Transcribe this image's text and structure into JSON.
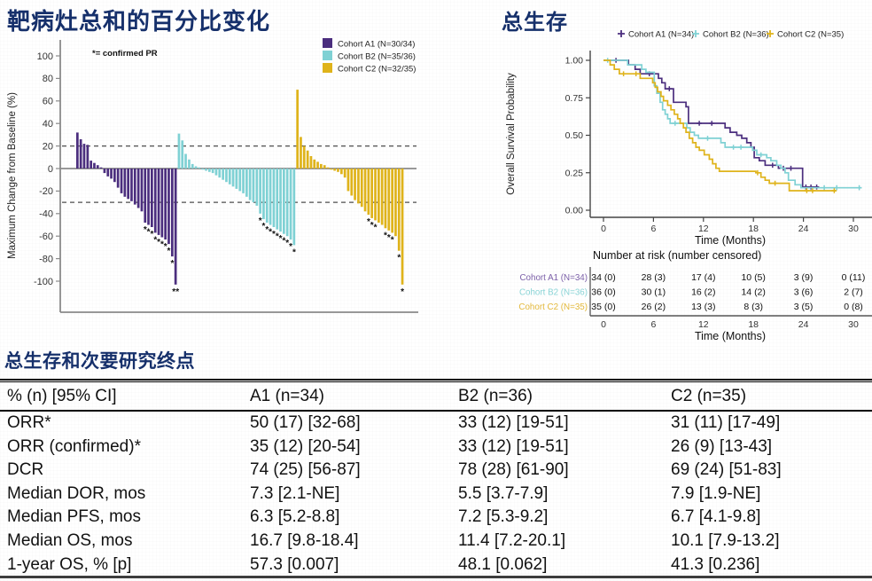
{
  "accent_title_color": "#16306B",
  "chart_data": [
    {
      "id": "waterfall",
      "type": "bar",
      "title": "靶病灶总和的百分比变化",
      "annotation": "*= confirmed PR",
      "ylabel": "Maximum Change from Baseline (%)",
      "ylim": [
        -110,
        110
      ],
      "yticks": [
        100,
        80,
        60,
        40,
        20,
        0,
        -20,
        -40,
        -60,
        -80,
        -100
      ],
      "reference_lines": [
        20,
        -30
      ],
      "grid": false,
      "legend_position": "top-right",
      "series": [
        {
          "name": "Cohort A1 (N=30/34)",
          "color": "#4B2E7E",
          "values": [
            32,
            26,
            22,
            21,
            7,
            5,
            3,
            1,
            -4,
            -7,
            -9,
            -12,
            -17,
            -22,
            -25,
            -27,
            -29,
            -32,
            -35,
            -38,
            -48,
            -50,
            -52,
            -57,
            -59,
            -61,
            -63,
            -67,
            -78,
            -103
          ],
          "star_indices": [
            20,
            21,
            22,
            23,
            24,
            25,
            26,
            27,
            28,
            29
          ],
          "double_star_indices": [
            29
          ]
        },
        {
          "name": "Cohort B2 (N=35/36)",
          "color": "#7FD1D4",
          "values": [
            31,
            25,
            13,
            8,
            4,
            2,
            1,
            -1,
            -2,
            -3,
            -4,
            -6,
            -8,
            -10,
            -12,
            -14,
            -16,
            -18,
            -20,
            -22,
            -25,
            -28,
            -30,
            -33,
            -40,
            -45,
            -48,
            -50,
            -52,
            -54,
            -56,
            -58,
            -60,
            -63,
            -68
          ],
          "star_indices": [
            24,
            25,
            26,
            27,
            28,
            29,
            30,
            31,
            32,
            33,
            34
          ],
          "double_star_indices": []
        },
        {
          "name": "Cohort C2 (N=32/35)",
          "color": "#DFB31A",
          "values": [
            70,
            28,
            20,
            16,
            11,
            8,
            6,
            4,
            3,
            1,
            -1,
            -2,
            -3,
            -5,
            -8,
            -20,
            -24,
            -28,
            -31,
            -34,
            -38,
            -41,
            -44,
            -46,
            -48,
            -50,
            -53,
            -55,
            -57,
            -60,
            -73,
            -103
          ],
          "star_indices": [
            21,
            22,
            23,
            26,
            27,
            28,
            30,
            31
          ],
          "double_star_indices": []
        }
      ]
    },
    {
      "id": "overall-survival",
      "type": "line",
      "title": "总生存",
      "ylabel": "Overall Survival Probability",
      "xlabel": "Time (Months)",
      "yticks": [
        "0.00",
        "0.25",
        "0.50",
        "0.75",
        "1.00"
      ],
      "xticks": [
        0,
        6,
        12,
        18,
        24,
        30
      ],
      "xlim": [
        0,
        31.5
      ],
      "ylim": [
        0,
        1
      ],
      "grid": false,
      "legend_position": "top",
      "series": [
        {
          "name": "Cohort A1 (N=34)",
          "color": "#4B2E7E",
          "steps": [
            [
              0,
              1
            ],
            [
              3,
              1
            ],
            [
              3,
              0.97
            ],
            [
              3.8,
              0.97
            ],
            [
              3.8,
              0.94
            ],
            [
              4.4,
              0.94
            ],
            [
              4.4,
              0.91
            ],
            [
              6.6,
              0.91
            ],
            [
              6.6,
              0.88
            ],
            [
              7.0,
              0.88
            ],
            [
              7.0,
              0.85
            ],
            [
              7.4,
              0.85
            ],
            [
              7.4,
              0.81
            ],
            [
              8.4,
              0.81
            ],
            [
              8.4,
              0.72
            ],
            [
              9.9,
              0.72
            ],
            [
              9.9,
              0.69
            ],
            [
              10.2,
              0.69
            ],
            [
              10.2,
              0.58
            ],
            [
              14.6,
              0.58
            ],
            [
              14.6,
              0.55
            ],
            [
              15.2,
              0.55
            ],
            [
              15.2,
              0.52
            ],
            [
              16.0,
              0.52
            ],
            [
              16.0,
              0.5
            ],
            [
              16.6,
              0.5
            ],
            [
              16.6,
              0.48
            ],
            [
              17.2,
              0.48
            ],
            [
              17.2,
              0.45
            ],
            [
              17.7,
              0.45
            ],
            [
              17.7,
              0.42
            ],
            [
              18.1,
              0.42
            ],
            [
              18.1,
              0.35
            ],
            [
              18.7,
              0.35
            ],
            [
              18.7,
              0.33
            ],
            [
              19.4,
              0.33
            ],
            [
              19.4,
              0.3
            ],
            [
              21.0,
              0.3
            ],
            [
              21.0,
              0.28
            ],
            [
              23.9,
              0.28
            ],
            [
              23.9,
              0.155
            ],
            [
              25.8,
              0.155
            ]
          ],
          "censors": [
            [
              1.5,
              1
            ],
            [
              5.5,
              0.91
            ],
            [
              7.9,
              0.81
            ],
            [
              11.5,
              0.58
            ],
            [
              13.0,
              0.58
            ],
            [
              20.3,
              0.3
            ],
            [
              21.6,
              0.28
            ],
            [
              22.5,
              0.28
            ],
            [
              24.3,
              0.155
            ],
            [
              24.9,
              0.155
            ],
            [
              25.6,
              0.155
            ]
          ]
        },
        {
          "name": "Cohort B2 (N=36)",
          "color": "#7FD1D4",
          "steps": [
            [
              0,
              1
            ],
            [
              2.9,
              1
            ],
            [
              2.9,
              0.97
            ],
            [
              4.6,
              0.97
            ],
            [
              4.6,
              0.94
            ],
            [
              5.1,
              0.94
            ],
            [
              5.1,
              0.92
            ],
            [
              6.1,
              0.92
            ],
            [
              6.1,
              0.83
            ],
            [
              6.4,
              0.83
            ],
            [
              6.4,
              0.78
            ],
            [
              6.8,
              0.78
            ],
            [
              6.8,
              0.72
            ],
            [
              7.1,
              0.72
            ],
            [
              7.1,
              0.67
            ],
            [
              7.4,
              0.67
            ],
            [
              7.4,
              0.64
            ],
            [
              7.7,
              0.64
            ],
            [
              7.7,
              0.61
            ],
            [
              8.0,
              0.61
            ],
            [
              8.0,
              0.58
            ],
            [
              10.0,
              0.58
            ],
            [
              10.0,
              0.55
            ],
            [
              10.4,
              0.55
            ],
            [
              10.4,
              0.52
            ],
            [
              10.9,
              0.52
            ],
            [
              10.9,
              0.5
            ],
            [
              11.4,
              0.5
            ],
            [
              11.4,
              0.48
            ],
            [
              14.1,
              0.48
            ],
            [
              14.1,
              0.45
            ],
            [
              14.6,
              0.45
            ],
            [
              14.6,
              0.42
            ],
            [
              17.9,
              0.42
            ],
            [
              17.9,
              0.4
            ],
            [
              18.4,
              0.4
            ],
            [
              18.4,
              0.37
            ],
            [
              19.6,
              0.37
            ],
            [
              19.6,
              0.35
            ],
            [
              20.1,
              0.35
            ],
            [
              20.1,
              0.33
            ],
            [
              20.8,
              0.33
            ],
            [
              20.8,
              0.3
            ],
            [
              21.3,
              0.3
            ],
            [
              21.3,
              0.28
            ],
            [
              21.8,
              0.28
            ],
            [
              21.8,
              0.25
            ],
            [
              22.2,
              0.25
            ],
            [
              22.2,
              0.2
            ],
            [
              23.0,
              0.2
            ],
            [
              23.0,
              0.17
            ],
            [
              23.7,
              0.17
            ],
            [
              23.7,
              0.15
            ],
            [
              31.0,
              0.15
            ]
          ],
          "censors": [
            [
              0.5,
              1
            ],
            [
              8.6,
              0.58
            ],
            [
              12.5,
              0.48
            ],
            [
              15.6,
              0.42
            ],
            [
              16.5,
              0.42
            ],
            [
              18.9,
              0.37
            ],
            [
              26.5,
              0.15
            ],
            [
              28.0,
              0.15
            ],
            [
              30.7,
              0.15
            ]
          ]
        },
        {
          "name": "Cohort C2 (N=35)",
          "color": "#DFB31A",
          "steps": [
            [
              0,
              1
            ],
            [
              0.8,
              1
            ],
            [
              0.8,
              0.97
            ],
            [
              1.3,
              0.97
            ],
            [
              1.3,
              0.94
            ],
            [
              1.9,
              0.94
            ],
            [
              1.9,
              0.91
            ],
            [
              4.4,
              0.91
            ],
            [
              4.4,
              0.88
            ],
            [
              5.9,
              0.88
            ],
            [
              5.9,
              0.85
            ],
            [
              6.2,
              0.85
            ],
            [
              6.2,
              0.82
            ],
            [
              6.5,
              0.82
            ],
            [
              6.5,
              0.79
            ],
            [
              6.9,
              0.79
            ],
            [
              6.9,
              0.76
            ],
            [
              7.2,
              0.76
            ],
            [
              7.2,
              0.73
            ],
            [
              7.7,
              0.73
            ],
            [
              7.7,
              0.7
            ],
            [
              8.1,
              0.7
            ],
            [
              8.1,
              0.67
            ],
            [
              8.5,
              0.67
            ],
            [
              8.5,
              0.64
            ],
            [
              8.9,
              0.64
            ],
            [
              8.9,
              0.61
            ],
            [
              9.2,
              0.61
            ],
            [
              9.2,
              0.58
            ],
            [
              9.6,
              0.58
            ],
            [
              9.6,
              0.55
            ],
            [
              9.9,
              0.55
            ],
            [
              9.9,
              0.52
            ],
            [
              10.3,
              0.52
            ],
            [
              10.3,
              0.48
            ],
            [
              10.7,
              0.48
            ],
            [
              10.7,
              0.45
            ],
            [
              11.1,
              0.45
            ],
            [
              11.1,
              0.42
            ],
            [
              11.5,
              0.42
            ],
            [
              11.5,
              0.4
            ],
            [
              12.1,
              0.4
            ],
            [
              12.1,
              0.37
            ],
            [
              12.7,
              0.37
            ],
            [
              12.7,
              0.34
            ],
            [
              13.1,
              0.34
            ],
            [
              13.1,
              0.31
            ],
            [
              13.5,
              0.31
            ],
            [
              13.5,
              0.28
            ],
            [
              13.9,
              0.28
            ],
            [
              13.9,
              0.26
            ],
            [
              18.3,
              0.26
            ],
            [
              18.3,
              0.25
            ],
            [
              18.9,
              0.25
            ],
            [
              18.9,
              0.22
            ],
            [
              19.4,
              0.22
            ],
            [
              19.4,
              0.2
            ],
            [
              19.9,
              0.2
            ],
            [
              19.9,
              0.18
            ],
            [
              22.3,
              0.18
            ],
            [
              22.3,
              0.13
            ],
            [
              27.9,
              0.13
            ]
          ],
          "censors": [
            [
              2.4,
              0.91
            ],
            [
              3.9,
              0.91
            ],
            [
              18.5,
              0.25
            ],
            [
              20.6,
              0.18
            ],
            [
              24.4,
              0.13
            ],
            [
              25.1,
              0.13
            ],
            [
              27.7,
              0.13
            ]
          ]
        }
      ],
      "risk_table": {
        "header": "Number at risk (number censored)",
        "xlabel": "Time (Months)",
        "xticks": [
          0,
          6,
          12,
          18,
          24,
          30
        ],
        "rows": [
          {
            "label": "Cohort A1 (N=34)",
            "color": "#7B5FA8",
            "values": [
              "34 (0)",
              "28 (3)",
              "17 (4)",
              "10 (5)",
              "3 (9)",
              "0 (11)"
            ]
          },
          {
            "label": "Cohort B2 (N=36)",
            "color": "#8AD4D6",
            "values": [
              "36 (0)",
              "30 (1)",
              "16 (2)",
              "14 (2)",
              "3 (6)",
              "2 (7)"
            ]
          },
          {
            "label": "Cohort C2 (N=35)",
            "color": "#E3B83A",
            "values": [
              "35 (0)",
              "26 (2)",
              "13 (3)",
              "8 (3)",
              "3 (5)",
              "0 (8)"
            ]
          }
        ]
      }
    },
    {
      "id": "endpoints",
      "type": "table",
      "title": "总生存和次要研究终点",
      "headers": [
        "% (n) [95% CI]",
        "A1 (n=34)",
        "B2 (n=36)",
        "C2 (n=35)"
      ],
      "rows": [
        [
          "ORR*",
          "50 (17) [32-68]",
          "33 (12) [19-51]",
          "31 (11) [17-49]"
        ],
        [
          "ORR (confirmed)*",
          "35 (12) [20-54]",
          "33 (12) [19-51]",
          "26 (9) [13-43]"
        ],
        [
          "DCR",
          "74 (25) [56-87]",
          "78 (28) [61-90]",
          "69 (24) [51-83]"
        ],
        [
          "Median DOR, mos",
          "7.3 [2.1-NE]",
          "5.5 [3.7-7.9]",
          "7.9 [1.9-NE]"
        ],
        [
          "Median PFS, mos",
          "6.3 [5.2-8.8]",
          "7.2 [5.3-9.2]",
          "6.7 [4.1-9.8]"
        ],
        [
          "Median OS, mos",
          "16.7 [9.8-18.4]",
          "11.4 [7.2-20.1]",
          "10.1 [7.9-13.2]"
        ],
        [
          "1-year OS, % [p]",
          "57.3 [0.007]",
          "48.1 [0.062]",
          "41.3 [0.236]"
        ]
      ]
    }
  ]
}
